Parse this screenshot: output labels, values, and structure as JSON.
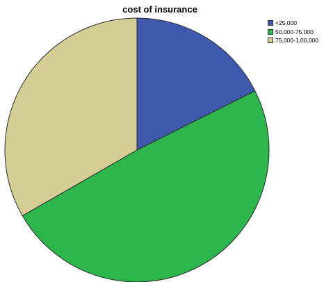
{
  "chart_data": {
    "type": "pie",
    "title": "cost of insurance",
    "legend_position": "top-right",
    "slices": [
      {
        "label": "<25,000",
        "value": 17.6,
        "color": "#3f5aac"
      },
      {
        "label": "50,000-75,000",
        "value": 49.1,
        "color": "#2db64c"
      },
      {
        "label": "75,000-1,00,000",
        "value": 33.3,
        "color": "#d4cd96"
      }
    ]
  }
}
